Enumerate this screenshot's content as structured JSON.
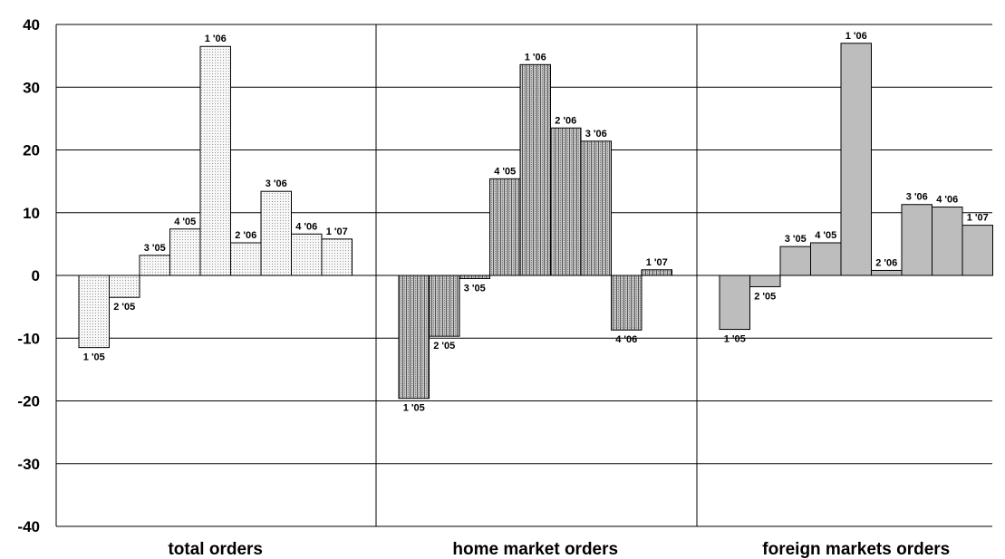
{
  "chart_data": {
    "type": "bar",
    "ylim": [
      -40,
      40
    ],
    "yticks": [
      40,
      30,
      20,
      10,
      0,
      -10,
      -20,
      -30,
      -40
    ],
    "grid": true,
    "groups": [
      {
        "name": "total orders",
        "pattern": "dotted",
        "bars": [
          {
            "label": "1 '05",
            "value": -11.5
          },
          {
            "label": "2 '05",
            "value": -3.5
          },
          {
            "label": "3 '05",
            "value": 3.2
          },
          {
            "label": "4 '05",
            "value": 7.4
          },
          {
            "label": "1 '06",
            "value": 36.5
          },
          {
            "label": "2 '06",
            "value": 5.2
          },
          {
            "label": "3 '06",
            "value": 13.4
          },
          {
            "label": "4 '06",
            "value": 6.6
          },
          {
            "label": "1 '07",
            "value": 5.8
          }
        ]
      },
      {
        "name": "home market orders",
        "pattern": "dense",
        "bars": [
          {
            "label": "1 '05",
            "value": -19.6
          },
          {
            "label": "2 '05",
            "value": -9.7
          },
          {
            "label": "3 '05",
            "value": -0.5
          },
          {
            "label": "4 '05",
            "value": 15.4
          },
          {
            "label": "1 '06",
            "value": 33.6
          },
          {
            "label": "2 '06",
            "value": 23.5
          },
          {
            "label": "3 '06",
            "value": 21.4
          },
          {
            "label": "4 '06",
            "value": -8.7
          },
          {
            "label": "1 '07",
            "value": 0.9
          }
        ]
      },
      {
        "name": "foreign markets orders",
        "pattern": "gray",
        "bars": [
          {
            "label": "1 '05",
            "value": -8.6
          },
          {
            "label": "2 '05",
            "value": -1.8
          },
          {
            "label": "3 '05",
            "value": 4.6
          },
          {
            "label": "4 '05",
            "value": 5.2
          },
          {
            "label": "1 '06",
            "value": 37.0
          },
          {
            "label": "2 '06",
            "value": 0.8
          },
          {
            "label": "3 '06",
            "value": 11.3
          },
          {
            "label": "4 '06",
            "value": 10.9
          },
          {
            "label": "1 '07",
            "value": 8.0
          }
        ]
      }
    ],
    "colors": {
      "dotted_fill": "#f4f4f4",
      "dense_fill": "#a8a8a8",
      "gray_fill": "#bdbdbd",
      "gridline": "#000000",
      "bar_stroke": "#000000"
    }
  }
}
